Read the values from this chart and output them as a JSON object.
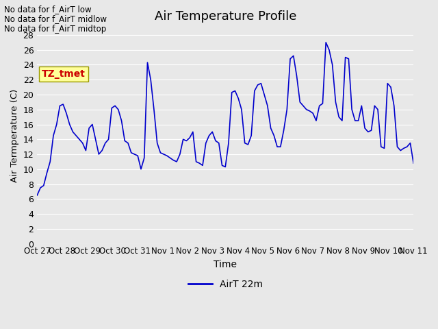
{
  "title": "Air Temperature Profile",
  "xlabel": "Time",
  "ylabel": "Air Termperature (C)",
  "line_color": "#0000CC",
  "line_label": "AirT 22m",
  "background_color": "#E8E8E8",
  "ylim": [
    0,
    29
  ],
  "yticks": [
    0,
    2,
    4,
    6,
    8,
    10,
    12,
    14,
    16,
    18,
    20,
    22,
    24,
    26,
    28
  ],
  "grid_color": "#FFFFFF",
  "annotations": [
    "No data for f_AirT low",
    "No data for f_AirT midlow",
    "No data for f_AirT midtop"
  ],
  "annotation_color": "#000000",
  "legend_box_color": "#FFFF99",
  "legend_text_color": "#CC0000",
  "legend_box_label": "TZ_tmet",
  "x_tick_labels": [
    "Oct 27",
    "Oct 28",
    "Oct 29",
    "Oct 30",
    "Oct 31",
    "Nov 1",
    "Nov 2",
    "Nov 3",
    "Nov 4",
    "Nov 5",
    "Nov 6",
    "Nov 7",
    "Nov 8",
    "Nov 9",
    "Nov 10",
    "Nov 11"
  ],
  "temp_values": [
    6.5,
    7.5,
    7.8,
    9.5,
    11.0,
    14.5,
    16.0,
    18.5,
    18.7,
    17.5,
    16.0,
    15.0,
    14.5,
    14.0,
    13.5,
    12.5,
    15.5,
    16.0,
    14.0,
    12.0,
    12.5,
    13.5,
    14.0,
    18.2,
    18.5,
    18.0,
    16.5,
    13.8,
    13.5,
    12.2,
    12.0,
    11.8,
    10.0,
    11.5,
    24.3,
    22.0,
    18.0,
    13.5,
    12.2,
    12.0,
    11.8,
    11.5,
    11.2,
    11.0,
    12.0,
    14.0,
    13.8,
    14.2,
    15.0,
    11.0,
    10.8,
    10.5,
    13.5,
    14.5,
    15.0,
    13.8,
    13.5,
    10.5,
    10.3,
    13.5,
    20.3,
    20.5,
    19.5,
    18.0,
    13.5,
    13.3,
    14.5,
    20.5,
    21.3,
    21.5,
    20.0,
    18.5,
    15.5,
    14.5,
    13.0,
    13.0,
    15.2,
    18.0,
    24.8,
    25.2,
    22.5,
    19.0,
    18.5,
    18.0,
    17.8,
    17.5,
    16.5,
    18.5,
    18.8,
    27.0,
    26.0,
    24.0,
    19.0,
    17.0,
    16.5,
    25.0,
    24.8,
    18.0,
    16.5,
    16.5,
    18.5,
    15.5,
    15.0,
    15.2,
    18.5,
    18.0,
    13.0,
    12.8,
    21.5,
    21.0,
    18.5,
    13.0,
    12.5,
    12.8,
    13.0,
    13.5,
    10.8
  ]
}
